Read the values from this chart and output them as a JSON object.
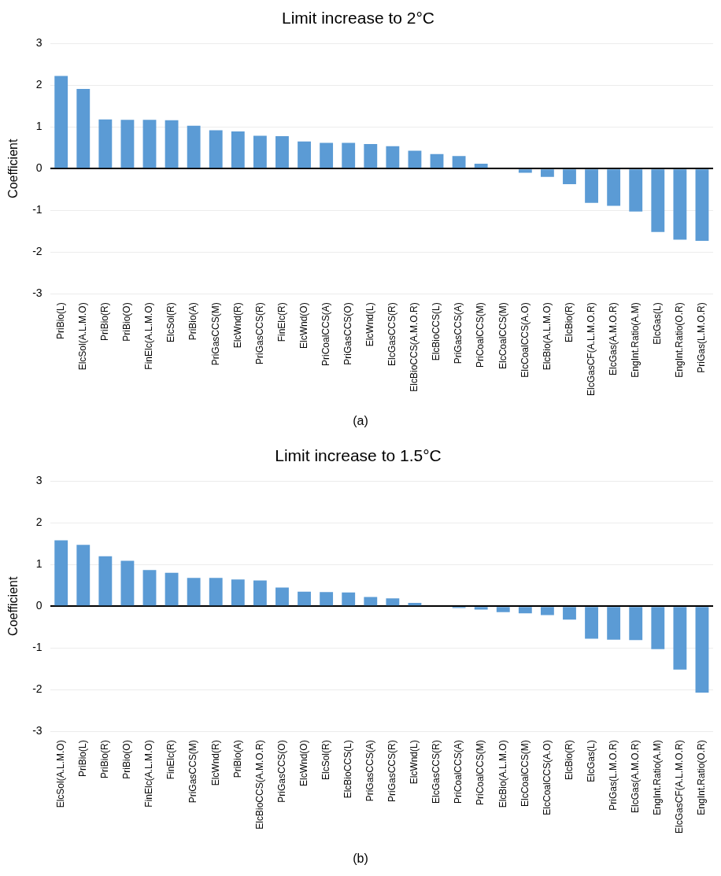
{
  "chart_data": [
    {
      "type": "bar",
      "title": "Limit increase to 2°C",
      "ylabel": "Coefficient",
      "annotations": [
        "(a)"
      ],
      "categories": [
        "PriBio(L)",
        "ElcSol(A.L.M.O)",
        "PriBio(R)",
        "PriBio(O)",
        "FinElc(A.L.M.O)",
        "ElcSol(R)",
        "PriBio(A)",
        "PriGasCCS(M)",
        "ElcWnd(R)",
        "PriGasCCS(R)",
        "FinElc(R)",
        "ElcWnd(O)",
        "PriCoalCCS(A)",
        "PriGasCCS(O)",
        "ElcWnd(L)",
        "ElcGasCCS(R)",
        "ElcBioCCS(A.M.O.R)",
        "ElcBioCCS(L)",
        "PriGasCCS(A)",
        "PriCoalCCS(M)",
        "ElcCoalCCS(M)",
        "ElcCoalCCS(A.O)",
        "ElcBio(A.L.M.O)",
        "ElcBio(R)",
        "ElcGasCF(A.L.M.O.R)",
        "ElcGas(A.M.O.R)",
        "EngInt.Ratio(A.M)",
        "ElcGas(L)",
        "EngInt.Ratio(O.R)",
        "PriGas(L.M.O.R)"
      ],
      "values": [
        2.22,
        1.91,
        1.18,
        1.17,
        1.17,
        1.16,
        1.03,
        0.92,
        0.89,
        0.79,
        0.78,
        0.65,
        0.62,
        0.62,
        0.59,
        0.54,
        0.43,
        0.35,
        0.3,
        0.12,
        0,
        -0.1,
        -0.2,
        -0.37,
        -0.82,
        -0.89,
        -1.03,
        -1.52,
        -1.7,
        -1.73
      ],
      "color": "#5b9bd5",
      "ylim": [
        -3,
        3
      ],
      "yticks": [
        -3,
        -2,
        -1,
        0,
        1,
        2,
        3
      ],
      "grid": "y",
      "legend": false
    },
    {
      "type": "bar",
      "title": "Limit increase to 1.5°C",
      "ylabel": "Coefficient",
      "annotations": [
        "(b)"
      ],
      "categories": [
        "ElcSol(A.L.M.O)",
        "PriBio(L)",
        "PriBio(R)",
        "PriBio(O)",
        "FinElc(A.L.M.O)",
        "FinElc(R)",
        "PriGasCCS(M)",
        "ElcWnd(R)",
        "PriBio(A)",
        "ElcBioCCS(A.M.O.R)",
        "PriGasCCS(O)",
        "ElcWnd(O)",
        "ElcSol(R)",
        "ElcBioCCS(L)",
        "PriGasCCS(A)",
        "PriGasCCS(R)",
        "ElcWnd(L)",
        "ElcGasCCS(R)",
        "PriCoalCCS(A)",
        "PriCoalCCS(M)",
        "ElcBio(A.L.M.O)",
        "ElcCoalCCS(M)",
        "ElcCoalCCS(A.O)",
        "ElcBio(R)",
        "ElcGas(L)",
        "PriGas(L.M.O.R)",
        "ElcGas(A.M.O.R)",
        "EngInt.Ratio(A.M)",
        "ElcGasCF(A.L.M.O.R)",
        "EngInt.Ratio(O.R)"
      ],
      "values": [
        1.58,
        1.47,
        1.2,
        1.09,
        0.87,
        0.8,
        0.68,
        0.68,
        0.64,
        0.62,
        0.45,
        0.35,
        0.34,
        0.33,
        0.22,
        0.19,
        0.08,
        0,
        -0.04,
        -0.08,
        -0.14,
        -0.17,
        -0.21,
        -0.32,
        -0.78,
        -0.8,
        -0.81,
        -1.03,
        -1.52,
        -2.07
      ],
      "color": "#5b9bd5",
      "ylim": [
        -3,
        3
      ],
      "yticks": [
        -3,
        -2,
        -1,
        0,
        1,
        2,
        3
      ],
      "grid": "y",
      "legend": false
    }
  ]
}
